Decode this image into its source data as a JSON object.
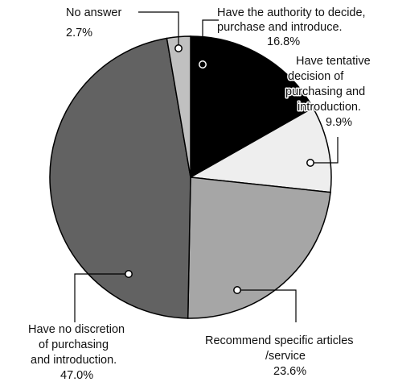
{
  "chart_data": {
    "type": "pie",
    "title": "",
    "start_angle_deg": 0,
    "direction": "clockwise",
    "slices": [
      {
        "label": [
          "Have the authority to decide,",
          "purchase and introduce."
        ],
        "value": 16.8,
        "value_label": "16.8%",
        "color": "#000000"
      },
      {
        "label": [
          "Have tentative",
          "decision of",
          "purchasing and",
          "introduction."
        ],
        "value": 9.9,
        "value_label": "9.9%",
        "color": "#eeeeee"
      },
      {
        "label": [
          "Recommend specific articles",
          "/service"
        ],
        "value": 23.6,
        "value_label": "23.6%",
        "color": "#a6a6a6"
      },
      {
        "label": [
          "Have no discretion",
          "of purchasing",
          "and introduction."
        ],
        "value": 47.0,
        "value_label": "47.0%",
        "color": "#626262"
      },
      {
        "label": [
          "No answer"
        ],
        "value": 2.7,
        "value_label": "2.7%",
        "color": "#c0c0c0"
      }
    ]
  }
}
